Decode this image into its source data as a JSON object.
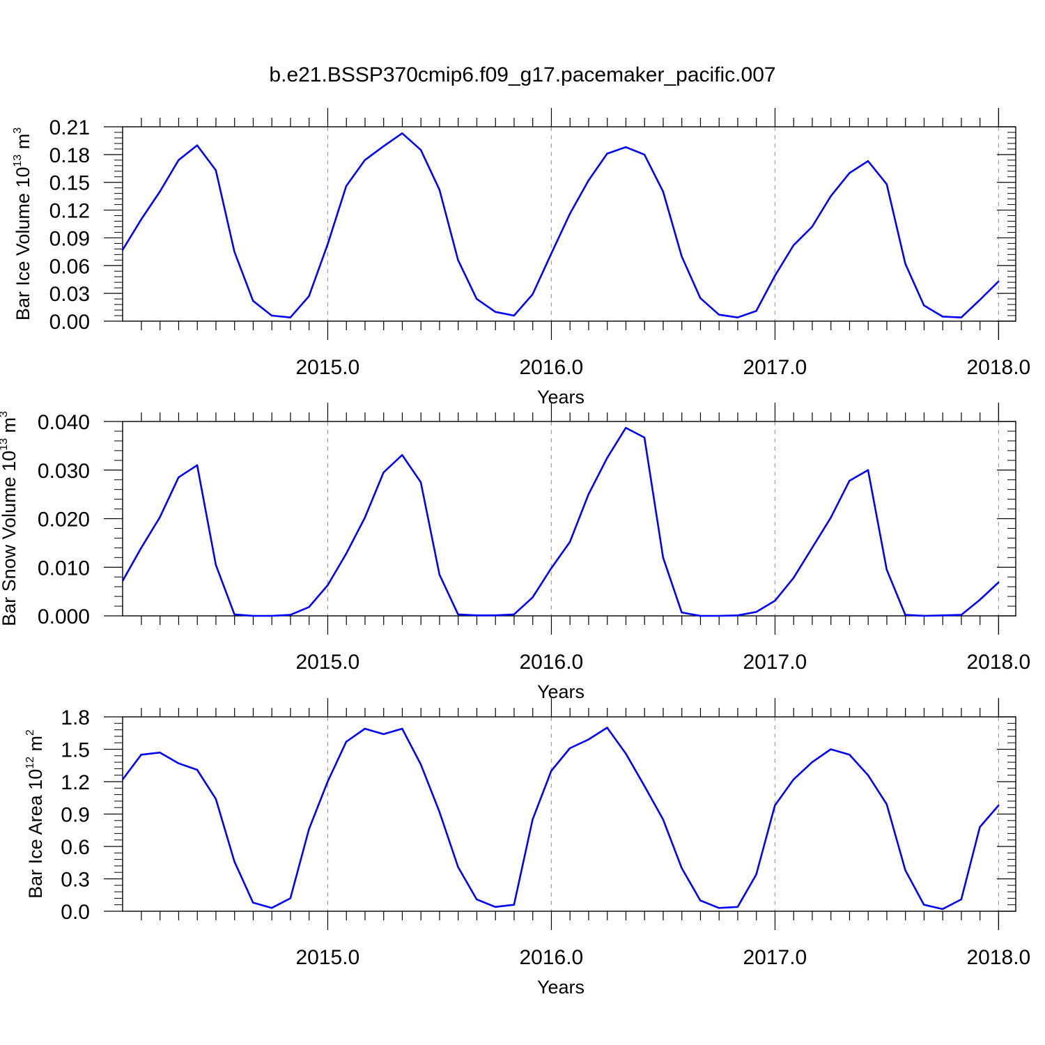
{
  "title": "b.e21.BSSP370cmip6.f09_g17.pacemaker_pacific.007",
  "colors": {
    "line": "#0000ff",
    "axis": "#000000",
    "grid": "#a0a0a0"
  },
  "chart_data": [
    {
      "type": "line",
      "ylabel": {
        "text": "Bar Ice Volume 10",
        "sup": "13",
        "unit": " m",
        "unit_sup": "3"
      },
      "xlabel": "Years",
      "xlim": [
        2014.083,
        2018.083
      ],
      "ylim": [
        0,
        0.21
      ],
      "yticks": [
        0.0,
        0.03,
        0.06,
        0.09,
        0.12,
        0.15,
        0.18,
        0.21
      ],
      "ytick_labels": [
        "0.00",
        "0.03",
        "0.06",
        "0.09",
        "0.12",
        "0.15",
        "0.18",
        "0.21"
      ],
      "xticks": [
        2015,
        2016,
        2017,
        2018
      ],
      "xtick_labels": [
        "2015.0",
        "2016.0",
        "2017.0",
        "2018.0"
      ],
      "grid": "vertical dashed at major x ticks",
      "series": [
        {
          "values": [
            0.077,
            0.11,
            0.14,
            0.174,
            0.19,
            0.163,
            0.075,
            0.022,
            0.006,
            0.004,
            0.027,
            0.083,
            0.146,
            0.174,
            0.189,
            0.203,
            0.185,
            0.142,
            0.066,
            0.024,
            0.01,
            0.006,
            0.029,
            0.073,
            0.116,
            0.152,
            0.181,
            0.188,
            0.18,
            0.14,
            0.07,
            0.025,
            0.007,
            0.004,
            0.011,
            0.049,
            0.082,
            0.102,
            0.135,
            0.16,
            0.173,
            0.148,
            0.062,
            0.017,
            0.005,
            0.004,
            0.023,
            0.043
          ]
        }
      ]
    },
    {
      "type": "line",
      "ylabel": {
        "text": "Bar Snow Volume 10",
        "sup": "13",
        "unit": " m",
        "unit_sup": "3"
      },
      "xlabel": "Years",
      "xlim": [
        2014.083,
        2018.083
      ],
      "ylim": [
        0,
        0.04
      ],
      "yticks": [
        0.0,
        0.01,
        0.02,
        0.03,
        0.04
      ],
      "ytick_labels": [
        "0.000",
        "0.010",
        "0.020",
        "0.030",
        "0.040"
      ],
      "xticks": [
        2015,
        2016,
        2017,
        2018
      ],
      "xtick_labels": [
        "2015.0",
        "2016.0",
        "2017.0",
        "2018.0"
      ],
      "grid": "vertical dashed at major x ticks",
      "series": [
        {
          "values": [
            0.0072,
            0.014,
            0.0203,
            0.0285,
            0.031,
            0.0105,
            0.0003,
            0.0,
            0.0,
            0.0002,
            0.0018,
            0.0063,
            0.0128,
            0.0202,
            0.0295,
            0.0331,
            0.0275,
            0.0085,
            0.0003,
            0.0001,
            0.0001,
            0.0003,
            0.0038,
            0.0098,
            0.0152,
            0.025,
            0.0325,
            0.0387,
            0.0367,
            0.012,
            0.0007,
            0.0,
            0.0,
            0.0001,
            0.0008,
            0.0031,
            0.0078,
            0.014,
            0.0202,
            0.0278,
            0.03,
            0.0095,
            0.0002,
            0.0,
            0.0001,
            0.0002,
            0.0033,
            0.0069
          ]
        }
      ]
    },
    {
      "type": "line",
      "ylabel": {
        "text": "Bar Ice Area 10",
        "sup": "12",
        "unit": " m",
        "unit_sup": "2"
      },
      "xlabel": "Years",
      "xlim": [
        2014.083,
        2018.083
      ],
      "ylim": [
        0,
        1.8
      ],
      "yticks": [
        0.0,
        0.3,
        0.6,
        0.9,
        1.2,
        1.5,
        1.8
      ],
      "ytick_labels": [
        "0.0",
        "0.3",
        "0.6",
        "0.9",
        "1.2",
        "1.5",
        "1.8"
      ],
      "xticks": [
        2015,
        2016,
        2017,
        2018
      ],
      "xtick_labels": [
        "2015.0",
        "2016.0",
        "2017.0",
        "2018.0"
      ],
      "grid": "vertical dashed at major x ticks",
      "series": [
        {
          "values": [
            1.22,
            1.45,
            1.47,
            1.37,
            1.31,
            1.04,
            0.46,
            0.08,
            0.03,
            0.12,
            0.76,
            1.2,
            1.57,
            1.69,
            1.64,
            1.69,
            1.36,
            0.92,
            0.41,
            0.11,
            0.04,
            0.06,
            0.85,
            1.3,
            1.51,
            1.59,
            1.7,
            1.46,
            1.16,
            0.85,
            0.4,
            0.1,
            0.03,
            0.04,
            0.34,
            0.98,
            1.22,
            1.38,
            1.5,
            1.45,
            1.26,
            0.99,
            0.38,
            0.06,
            0.02,
            0.11,
            0.78,
            0.98
          ]
        }
      ]
    }
  ]
}
